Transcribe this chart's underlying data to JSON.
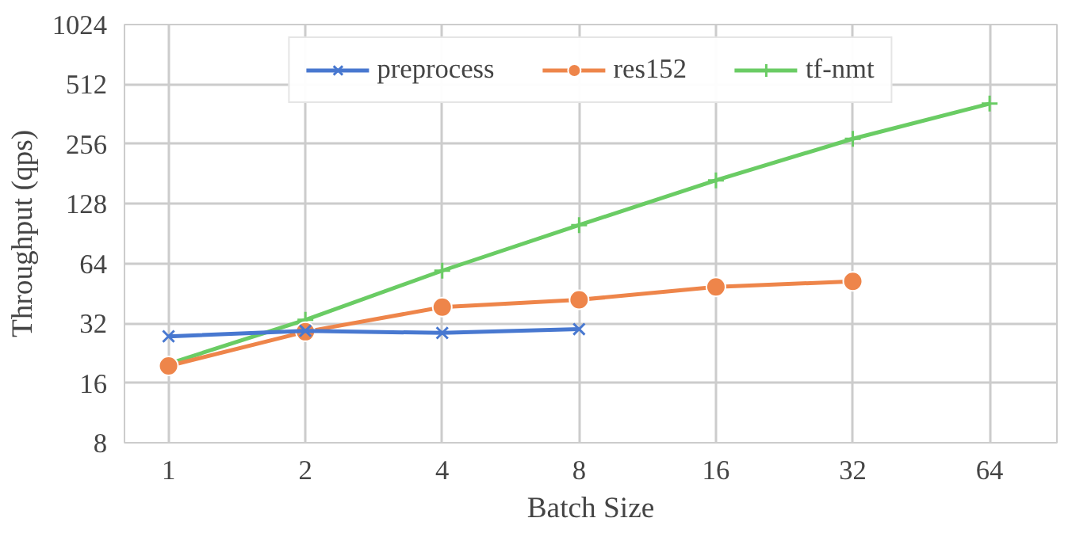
{
  "chart_data": {
    "type": "line",
    "xlabel": "Batch Size",
    "ylabel": "Throughput (qps)",
    "log": "xy",
    "x": [
      1,
      2,
      4,
      8,
      16,
      32,
      64
    ],
    "xlim": [
      0.8,
      90
    ],
    "xticks": [
      1,
      2,
      4,
      8,
      16,
      32,
      64
    ],
    "ylim": [
      8,
      1024
    ],
    "yticks": [
      8,
      16,
      32,
      64,
      128,
      256,
      512,
      1024
    ],
    "grid": true,
    "legend": "top",
    "series": [
      {
        "name": "preprocess",
        "color": "#4878d0",
        "marker": "cross",
        "values": [
          27.5,
          29.3,
          28.6,
          29.9,
          null,
          null,
          null
        ]
      },
      {
        "name": "res152",
        "color": "#ee854a",
        "marker": "circle",
        "values": [
          19.5,
          29,
          38.6,
          42,
          48.8,
          52,
          null
        ]
      },
      {
        "name": "tf-nmt",
        "color": "#6acc64",
        "marker": "plus",
        "values": [
          20,
          33.3,
          58.9,
          100,
          168,
          272,
          409
        ]
      }
    ]
  }
}
